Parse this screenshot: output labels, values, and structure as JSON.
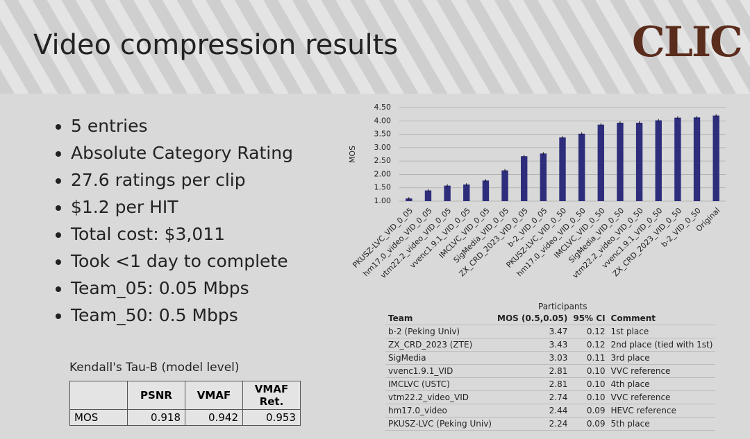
{
  "title": "Video compression results",
  "logo": "CLIC",
  "bullets": [
    "5 entries",
    "Absolute Category Rating",
    "27.6 ratings per clip",
    "$1.2 per HIT",
    "Total cost: $3,011",
    "Took <1 day to complete",
    "Team_05: 0.05 Mbps",
    "Team_50: 0.5 Mbps"
  ],
  "kendall": {
    "title": "Kendall's Tau-B (model level)",
    "header": [
      "PSNR",
      "VMAF",
      "VMAF Ret."
    ],
    "row_label": "MOS",
    "row": [
      "0.918",
      "0.942",
      "0.953"
    ]
  },
  "chart_data": {
    "type": "bar",
    "y_label": "MOS",
    "color": "#2e2d7c",
    "categories": [
      "PKUSZ-LVC_VID_0_05",
      "hm17.0_video_VID_0_05",
      "vtm22.2_video_VID_0_05",
      "vvenc1.9.1_VID_0_05",
      "IMCLVC_VID_0_05",
      "SigMedia_VID_0_05",
      "ZX_CRD_2023_VID_0_05",
      "b-2_VID_0_05",
      "PKUSZ-LVC_VID_0_50",
      "hm17.0_video_VID_0_50",
      "IMCLVC_VID_0_50",
      "SigMedia_VID_0_50",
      "vtm22.2_video_VID_0_50",
      "vvenc1.9.1_VID_0_50",
      "ZX_CRD_2023_VID_0_50",
      "b-2_VID_0_50",
      "Original"
    ],
    "values": [
      1.1,
      1.4,
      1.58,
      1.62,
      1.77,
      2.15,
      2.68,
      2.78,
      3.38,
      3.52,
      3.86,
      3.93,
      3.93,
      4.02,
      4.12,
      4.13,
      4.2
    ],
    "errors": [
      0.05,
      0.05,
      0.05,
      0.05,
      0.05,
      0.05,
      0.05,
      0.05,
      0.05,
      0.05,
      0.05,
      0.05,
      0.05,
      0.05,
      0.05,
      0.05,
      0.05
    ],
    "ylim": [
      1,
      4.5
    ],
    "yticks": [
      {
        "value": 1,
        "label": "1.00"
      },
      {
        "value": 1.5,
        "label": "1.50"
      },
      {
        "value": 2,
        "label": "2.00"
      },
      {
        "value": 2.5,
        "label": "2.50"
      },
      {
        "value": 3,
        "label": "3.00"
      },
      {
        "value": 3.5,
        "label": "3.50"
      },
      {
        "value": 4,
        "label": "4.00"
      },
      {
        "value": 4.5,
        "label": "4.50"
      }
    ],
    "grid": true
  },
  "participants": {
    "caption": "Participants",
    "header": [
      "Team",
      "MOS (0.5,0.05)",
      "95% CI",
      "Comment"
    ],
    "rows": [
      [
        "b-2 (Peking Univ)",
        "3.47",
        "0.12",
        "1st place"
      ],
      [
        "ZX_CRD_2023 (ZTE)",
        "3.43",
        "0.12",
        "2nd place (tied with 1st)"
      ],
      [
        "SigMedia",
        "3.03",
        "0.11",
        "3rd place"
      ],
      [
        "vvenc1.9.1_VID",
        "2.81",
        "0.10",
        "VVC reference"
      ],
      [
        "IMCLVC (USTC)",
        "2.81",
        "0.10",
        "4th place"
      ],
      [
        "vtm22.2_video_VID",
        "2.74",
        "0.10",
        "VVC reference"
      ],
      [
        "hm17.0_video",
        "2.44",
        "0.09",
        "HEVC reference"
      ],
      [
        "PKUSZ-LVC (Peking Univ)",
        "2.24",
        "0.09",
        "5th place"
      ]
    ]
  }
}
